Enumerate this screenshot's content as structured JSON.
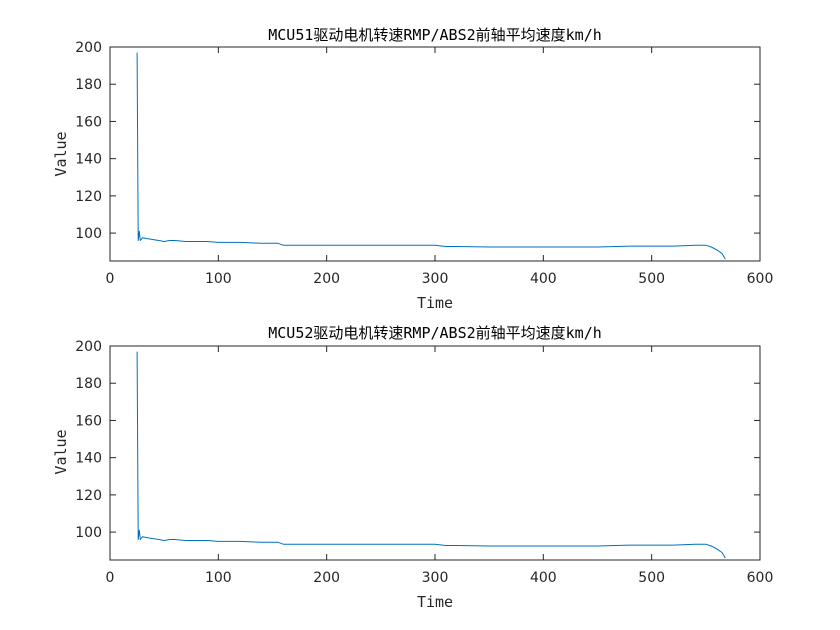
{
  "chart_data": [
    {
      "type": "line",
      "title": "MCU51驱动电机转速RMP/ABS2前轴平均速度km/h",
      "xlabel": "Time",
      "ylabel": "Value",
      "xlim": [
        0,
        600
      ],
      "ylim": [
        85,
        200
      ],
      "xticks": [
        0,
        100,
        200,
        300,
        400,
        500,
        600
      ],
      "yticks": [
        100,
        120,
        140,
        160,
        180,
        200
      ],
      "grid": false,
      "series": [
        {
          "color": "#0072BD",
          "x": [
            25,
            26,
            27,
            28,
            30,
            35,
            40,
            45,
            50,
            55,
            60,
            70,
            80,
            90,
            100,
            120,
            140,
            155,
            160,
            170,
            200,
            250,
            300,
            310,
            320,
            350,
            400,
            450,
            480,
            500,
            520,
            540,
            550,
            555,
            560,
            565,
            568
          ],
          "y": [
            197,
            96,
            101,
            96,
            97.5,
            97,
            96.5,
            96,
            95.5,
            96,
            96,
            95.5,
            95.5,
            95.5,
            95,
            95,
            94.5,
            94.5,
            93.5,
            93.5,
            93.5,
            93.5,
            93.5,
            92.8,
            92.8,
            92.5,
            92.5,
            92.5,
            93,
            93,
            93,
            93.5,
            93.5,
            92.5,
            91,
            89,
            86
          ]
        }
      ]
    },
    {
      "type": "line",
      "title": "MCU52驱动电机转速RMP/ABS2前轴平均速度km/h",
      "xlabel": "Time",
      "ylabel": "Value",
      "xlim": [
        0,
        600
      ],
      "ylim": [
        85,
        200
      ],
      "xticks": [
        0,
        100,
        200,
        300,
        400,
        500,
        600
      ],
      "yticks": [
        100,
        120,
        140,
        160,
        180,
        200
      ],
      "grid": false,
      "series": [
        {
          "color": "#0072BD",
          "x": [
            25,
            26,
            27,
            28,
            30,
            35,
            40,
            45,
            50,
            55,
            60,
            70,
            80,
            90,
            100,
            120,
            140,
            155,
            160,
            170,
            200,
            250,
            300,
            310,
            320,
            350,
            400,
            450,
            480,
            500,
            520,
            540,
            550,
            555,
            560,
            565,
            568
          ],
          "y": [
            197,
            96,
            101,
            96,
            97.5,
            97,
            96.5,
            96,
            95.5,
            96,
            96,
            95.5,
            95.5,
            95.5,
            95,
            95,
            94.5,
            94.5,
            93.5,
            93.5,
            93.5,
            93.5,
            93.5,
            92.8,
            92.8,
            92.5,
            92.5,
            92.5,
            93,
            93,
            93,
            93.5,
            93.5,
            92.5,
            91,
            89,
            86
          ]
        }
      ]
    }
  ]
}
